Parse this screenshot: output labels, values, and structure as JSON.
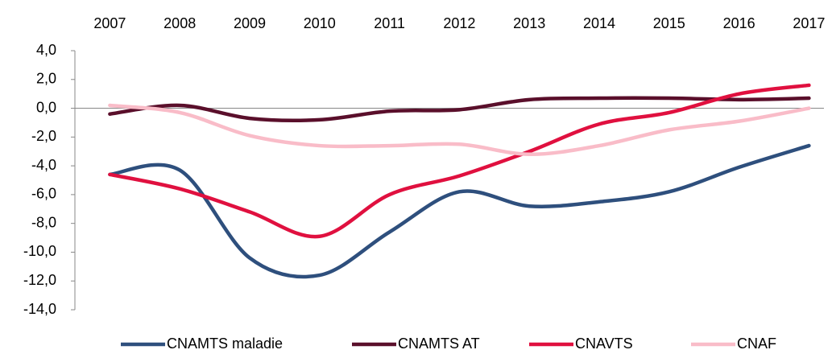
{
  "chart_data": {
    "type": "line",
    "categories": [
      "2007",
      "2008",
      "2009",
      "2010",
      "2011",
      "2012",
      "2013",
      "2014",
      "2015",
      "2016",
      "2017"
    ],
    "series": [
      {
        "name": "CNAMTS maladie",
        "color": "#2e4f7d",
        "values": [
          -4.6,
          -4.3,
          -10.4,
          -11.6,
          -8.6,
          -5.8,
          -6.8,
          -6.5,
          -5.8,
          -4.1,
          -2.6
        ]
      },
      {
        "name": "CNAMTS AT",
        "color": "#5a0f2b",
        "values": [
          -0.4,
          0.2,
          -0.7,
          -0.8,
          -0.2,
          -0.1,
          0.6,
          0.7,
          0.7,
          0.6,
          0.7
        ]
      },
      {
        "name": "CNAVTS",
        "color": "#e0103f",
        "values": [
          -4.6,
          -5.6,
          -7.2,
          -8.9,
          -6.0,
          -4.7,
          -3.0,
          -1.1,
          -0.3,
          1.0,
          1.6
        ]
      },
      {
        "name": "CNAF",
        "color": "#f9bcc8",
        "values": [
          0.2,
          -0.3,
          -1.9,
          -2.6,
          -2.6,
          -2.5,
          -3.2,
          -2.6,
          -1.5,
          -0.9,
          0.0
        ]
      }
    ],
    "ylim": [
      -14,
      4
    ],
    "yticks": [
      {
        "value": 4,
        "label": "4,0"
      },
      {
        "value": 2,
        "label": "2,0"
      },
      {
        "value": 0,
        "label": "0,0"
      },
      {
        "value": -2,
        "label": "-2,0"
      },
      {
        "value": -4,
        "label": "-4,0"
      },
      {
        "value": -6,
        "label": "-6,0"
      },
      {
        "value": -8,
        "label": "-8,0"
      },
      {
        "value": -10,
        "label": "-10,0"
      },
      {
        "value": -12,
        "label": "-12,0"
      },
      {
        "value": -14,
        "label": "-14,0"
      }
    ],
    "legend": "bottom",
    "grid": false
  }
}
